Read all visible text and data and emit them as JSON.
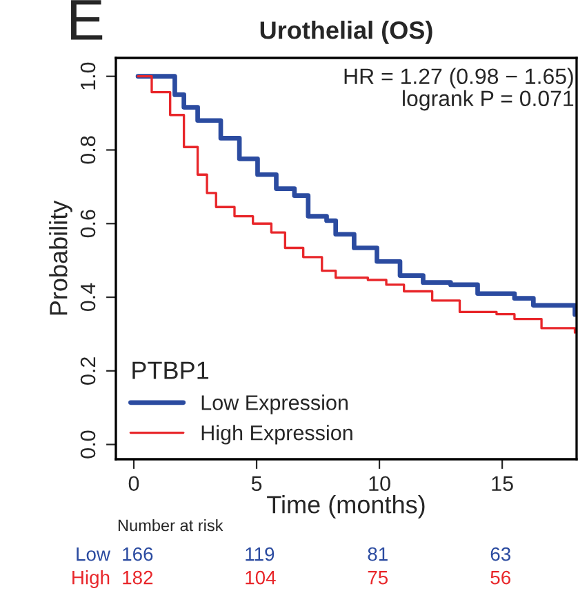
{
  "chart_data": {
    "type": "step",
    "title": "Urothelial (OS)",
    "xlabel": "Time (months)",
    "ylabel": "Probability",
    "legend_title": "PTBP1",
    "series": [
      {
        "name": "Low Expression",
        "color": "#2b4ba0",
        "x": [
          0.17,
          1.67,
          2.04,
          2.6,
          3.54,
          4.3,
          5.04,
          5.8,
          6.54,
          7.1,
          7.85,
          8.22,
          8.97,
          9.9,
          10.84,
          11.78,
          12.9,
          14.0,
          15.5,
          16.27,
          17.96
        ],
        "values": [
          1.0,
          0.95,
          0.916,
          0.88,
          0.832,
          0.776,
          0.733,
          0.695,
          0.676,
          0.62,
          0.608,
          0.571,
          0.534,
          0.497,
          0.459,
          0.44,
          0.434,
          0.41,
          0.397,
          0.378,
          0.353
        ]
      },
      {
        "name": "High Expression",
        "color": "#e8262a",
        "x": [
          0.17,
          0.73,
          1.48,
          2.04,
          2.6,
          2.98,
          3.35,
          4.1,
          4.85,
          5.6,
          6.16,
          6.9,
          7.66,
          8.22,
          9.53,
          10.28,
          11.0,
          12.15,
          13.27,
          14.77,
          15.5,
          16.6,
          17.96
        ],
        "values": [
          1.0,
          0.957,
          0.895,
          0.808,
          0.733,
          0.683,
          0.645,
          0.62,
          0.6,
          0.576,
          0.534,
          0.509,
          0.472,
          0.453,
          0.447,
          0.434,
          0.416,
          0.391,
          0.36,
          0.354,
          0.341,
          0.316,
          0.304
        ]
      }
    ],
    "xlim": [
      -0.73,
      18.03
    ],
    "xticks": [
      0,
      5,
      10,
      15
    ],
    "ylim": [
      -0.04,
      1.05
    ],
    "yticks": [
      {
        "value": 0,
        "label": "0.0"
      },
      {
        "value": 0.2,
        "label": "0.2"
      },
      {
        "value": 0.4,
        "label": "0.4"
      },
      {
        "value": 0.6,
        "label": "0.6"
      },
      {
        "value": 0.8,
        "label": "0.8"
      },
      {
        "value": 1,
        "label": "1.0"
      }
    ],
    "grid": false,
    "legend": "bottom left",
    "annotations": [
      "E",
      "HR = 1.27 (0.98 − 1.65)",
      "logrank P = 0.071",
      "Number at risk",
      "Low",
      "166",
      "119",
      "81",
      "63",
      "High",
      "182",
      "104",
      "75",
      "56"
    ]
  }
}
